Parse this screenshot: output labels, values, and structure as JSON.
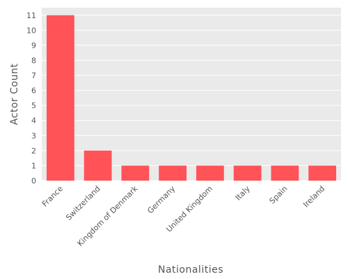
{
  "chart_data": {
    "type": "bar",
    "categories": [
      "France",
      "Switzerland",
      "Kingdom of Denmark",
      "Germany",
      "United Kingdom",
      "Italy",
      "Spain",
      "Ireland"
    ],
    "values": [
      11,
      2,
      1,
      1,
      1,
      1,
      1,
      1
    ],
    "title": "",
    "xlabel": "Nationalities",
    "ylabel": "Actor Count",
    "ylim": [
      0,
      11.5
    ],
    "yticks": [
      0,
      1,
      2,
      3,
      4,
      5,
      6,
      7,
      8,
      9,
      10,
      11
    ],
    "grid": true,
    "colors": {
      "bar": "#ff5358",
      "plot_background": "#eaeaea",
      "grid": "#ffffff"
    }
  }
}
